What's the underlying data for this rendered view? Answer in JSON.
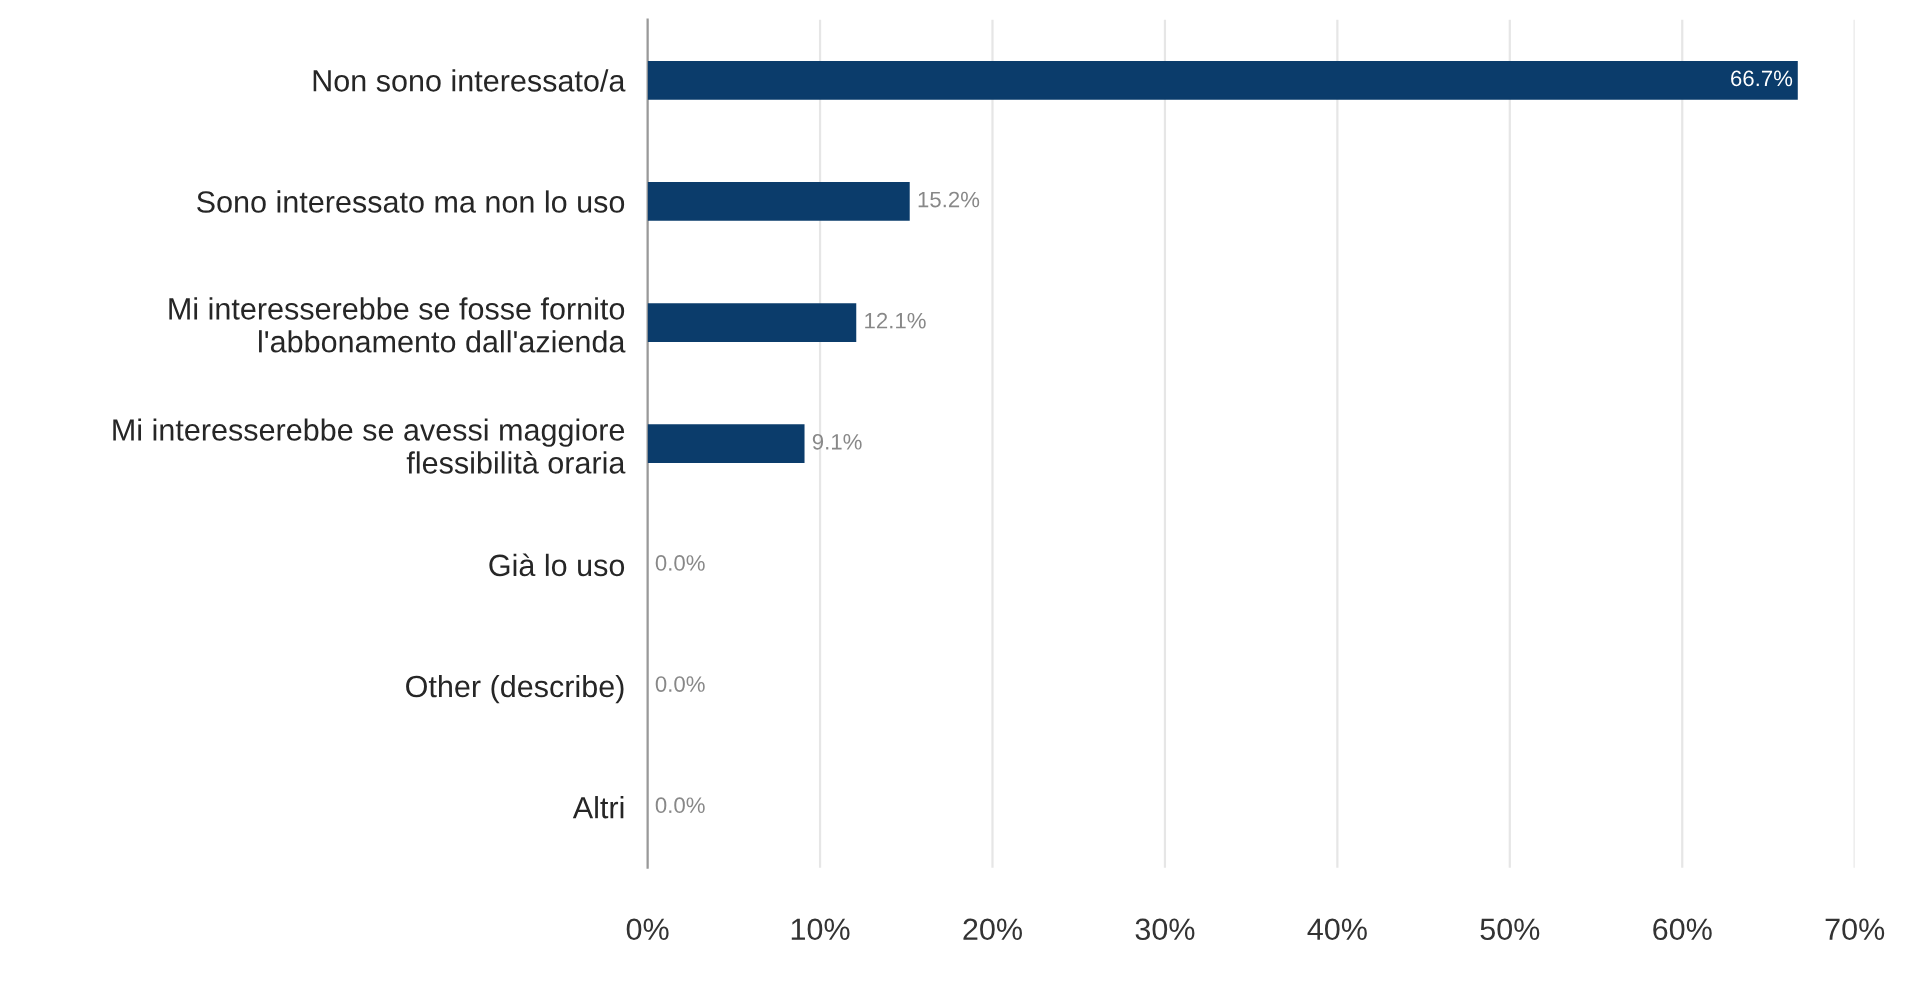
{
  "chart_data": {
    "type": "bar",
    "orientation": "horizontal",
    "categories": [
      "Non sono interessato/a",
      "Sono interessato ma non lo uso",
      "Mi interesserebbe se fosse fornito\nl'abbonamento dall'azienda",
      "Mi interesserebbe se avessi maggiore\nflessibilità oraria",
      "Già lo uso",
      "Other (describe)",
      "Altri"
    ],
    "values": [
      66.7,
      15.2,
      12.1,
      9.1,
      0.0,
      0.0,
      0.0
    ],
    "value_labels": [
      "66.7%",
      "15.2%",
      "12.1%",
      "9.1%",
      "0.0%",
      "0.0%",
      "0.0%"
    ],
    "color": "#0b3c6b",
    "xlim": [
      0,
      70
    ],
    "xticks": [
      {
        "value": 0,
        "label": "0%"
      },
      {
        "value": 10,
        "label": "10%"
      },
      {
        "value": 20,
        "label": "20%"
      },
      {
        "value": 30,
        "label": "30%"
      },
      {
        "value": 40,
        "label": "40%"
      },
      {
        "value": 50,
        "label": "50%"
      },
      {
        "value": 60,
        "label": "60%"
      },
      {
        "value": 70,
        "label": "70%"
      }
    ],
    "grid": "x",
    "legend": false
  }
}
